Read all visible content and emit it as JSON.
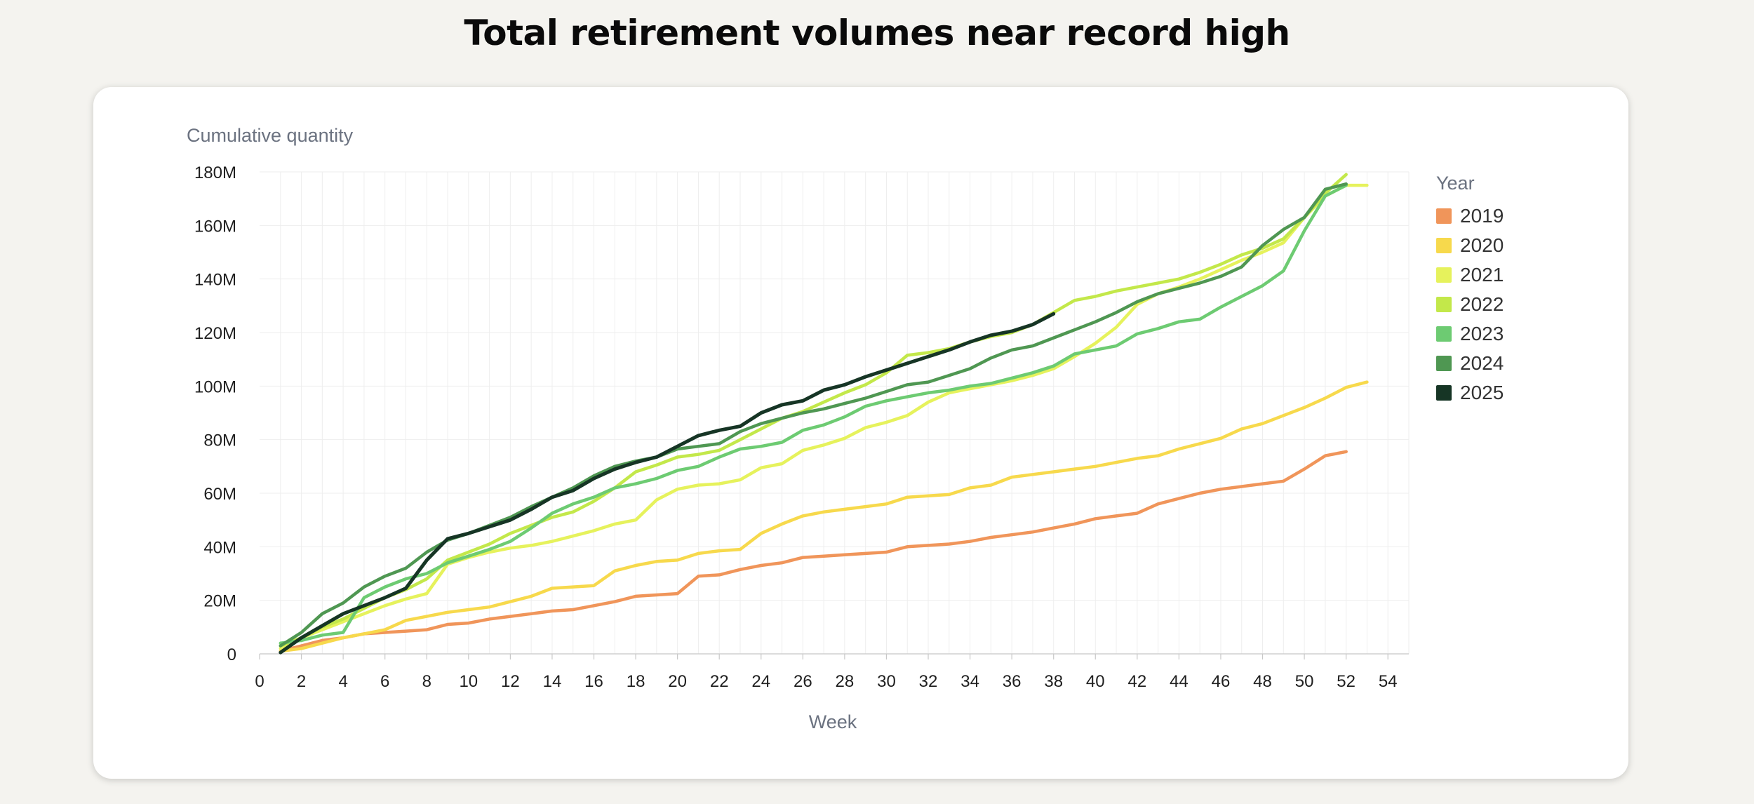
{
  "title": "Total retirement volumes near record high",
  "chart_data": {
    "type": "line",
    "title": "Total retirement volumes near record high",
    "xlabel": "Week",
    "ylabel": "Cumulative quantity",
    "x_ticks": [
      0,
      2,
      4,
      6,
      8,
      10,
      12,
      14,
      16,
      18,
      20,
      22,
      24,
      26,
      28,
      30,
      32,
      34,
      36,
      38,
      40,
      42,
      44,
      46,
      48,
      50,
      52,
      54
    ],
    "y_ticks": [
      0,
      20,
      40,
      60,
      80,
      100,
      120,
      140,
      160,
      180
    ],
    "y_tick_labels": [
      "0",
      "20M",
      "40M",
      "60M",
      "80M",
      "100M",
      "120M",
      "140M",
      "160M",
      "180M"
    ],
    "xlim": [
      0,
      55
    ],
    "ylim": [
      0,
      180
    ],
    "y_unit": "M",
    "grid": true,
    "legend_title": "Year",
    "legend_position": "right",
    "series": [
      {
        "name": "2019",
        "color": "#f0955a",
        "x": [
          1,
          2,
          3,
          4,
          5,
          6,
          7,
          8,
          9,
          10,
          11,
          12,
          13,
          14,
          15,
          16,
          17,
          18,
          19,
          20,
          21,
          22,
          23,
          24,
          25,
          26,
          27,
          28,
          29,
          30,
          31,
          32,
          33,
          34,
          35,
          36,
          37,
          38,
          39,
          40,
          41,
          42,
          43,
          44,
          45,
          46,
          47,
          48,
          49,
          50,
          51,
          52
        ],
        "values": [
          1,
          3,
          5,
          6,
          7.5,
          8,
          8.5,
          9,
          11,
          11.5,
          13,
          14,
          15,
          16,
          16.5,
          18,
          19.5,
          21.5,
          22,
          22.5,
          29,
          29.5,
          31.5,
          33,
          34,
          36,
          36.5,
          37,
          37.5,
          38,
          40,
          40.5,
          41,
          42,
          43.5,
          44.5,
          45.5,
          47,
          48.5,
          50.5,
          51.5,
          52.5,
          56,
          58,
          60,
          61.5,
          62.5,
          63.5,
          64.5,
          69,
          74,
          75.5
        ]
      },
      {
        "name": "2020",
        "color": "#f7d94c",
        "x": [
          1,
          2,
          3,
          4,
          5,
          6,
          7,
          8,
          9,
          10,
          11,
          12,
          13,
          14,
          15,
          16,
          17,
          18,
          19,
          20,
          21,
          22,
          23,
          24,
          25,
          26,
          27,
          28,
          29,
          30,
          31,
          32,
          33,
          34,
          35,
          36,
          37,
          38,
          39,
          40,
          41,
          42,
          43,
          44,
          45,
          46,
          47,
          48,
          49,
          50,
          51,
          52,
          53
        ],
        "values": [
          1,
          2,
          4,
          6,
          7.5,
          9,
          12.5,
          14,
          15.5,
          16.5,
          17.5,
          19.5,
          21.5,
          24.5,
          25,
          25.5,
          31,
          33,
          34.5,
          35,
          37.5,
          38.5,
          39,
          45,
          48.5,
          51.5,
          53,
          54,
          55,
          56,
          58.5,
          59,
          59.5,
          62,
          63,
          66,
          67,
          68,
          69,
          70,
          71.5,
          73,
          74,
          76.5,
          78.5,
          80.5,
          84,
          86,
          89,
          92,
          95.5,
          99.5,
          101.5
        ]
      },
      {
        "name": "2021",
        "color": "#e6f25c",
        "x": [
          1,
          2,
          3,
          4,
          5,
          6,
          7,
          8,
          9,
          10,
          11,
          12,
          13,
          14,
          15,
          16,
          17,
          18,
          19,
          20,
          21,
          22,
          23,
          24,
          25,
          26,
          27,
          28,
          29,
          30,
          31,
          32,
          33,
          34,
          35,
          36,
          37,
          38,
          39,
          40,
          41,
          42,
          43,
          44,
          45,
          46,
          47,
          48,
          49,
          50,
          51,
          52,
          53
        ],
        "values": [
          2,
          6,
          9,
          12,
          15,
          18,
          20.5,
          22.5,
          33.5,
          36,
          38,
          39.5,
          40.5,
          42,
          44,
          46,
          48.5,
          50,
          57.5,
          61.5,
          63,
          63.5,
          65,
          69.5,
          71,
          76,
          78,
          80.5,
          84.5,
          86.5,
          89,
          94,
          97.5,
          99,
          100.5,
          102,
          104,
          106.5,
          111,
          116,
          122,
          130.5,
          134.5,
          137,
          140,
          143.5,
          147,
          150,
          153.5,
          163,
          171,
          175,
          175
        ]
      },
      {
        "name": "2022",
        "color": "#c3e84a",
        "x": [
          1,
          2,
          3,
          4,
          5,
          6,
          7,
          8,
          9,
          10,
          11,
          12,
          13,
          14,
          15,
          16,
          17,
          18,
          19,
          20,
          21,
          22,
          23,
          24,
          25,
          26,
          27,
          28,
          29,
          30,
          31,
          32,
          33,
          34,
          35,
          36,
          37,
          38,
          39,
          40,
          41,
          42,
          43,
          44,
          45,
          46,
          47,
          48,
          49,
          50,
          51,
          52
        ],
        "values": [
          3,
          6,
          10,
          13,
          17,
          21,
          24,
          28,
          35,
          38,
          41,
          45,
          48,
          51,
          53,
          57,
          62,
          68,
          70.5,
          73.5,
          74.5,
          76,
          80,
          84,
          88,
          90.5,
          94,
          97.5,
          100.5,
          105,
          111.5,
          112.5,
          114,
          116.5,
          118.5,
          120,
          123,
          127.5,
          132,
          133.5,
          135.5,
          137,
          138.5,
          140,
          142.5,
          145.5,
          149,
          151.5,
          155,
          163,
          172,
          179
        ]
      },
      {
        "name": "2023",
        "color": "#6dcb72",
        "x": [
          1,
          2,
          3,
          4,
          5,
          6,
          7,
          8,
          9,
          10,
          11,
          12,
          13,
          14,
          15,
          16,
          17,
          18,
          19,
          20,
          21,
          22,
          23,
          24,
          25,
          26,
          27,
          28,
          29,
          30,
          31,
          32,
          33,
          34,
          35,
          36,
          37,
          38,
          39,
          40,
          41,
          42,
          43,
          44,
          45,
          46,
          47,
          48,
          49,
          50,
          51,
          52
        ],
        "values": [
          4,
          5,
          7,
          8,
          21,
          25,
          28,
          30,
          34,
          36.5,
          39,
          42,
          47,
          52.5,
          56,
          58.5,
          62,
          63.5,
          65.5,
          68.5,
          70,
          73.5,
          76.5,
          77.5,
          79,
          83.5,
          85.5,
          88.5,
          92.5,
          94.5,
          96,
          97.5,
          98.5,
          100,
          101,
          103,
          105,
          107.5,
          112,
          113.5,
          115,
          119.5,
          121.5,
          124,
          125,
          129.5,
          133.5,
          137.5,
          143,
          158,
          171,
          175
        ]
      },
      {
        "name": "2024",
        "color": "#4f9752",
        "x": [
          1,
          2,
          3,
          4,
          5,
          6,
          7,
          8,
          9,
          10,
          11,
          12,
          13,
          14,
          15,
          16,
          17,
          18,
          19,
          20,
          21,
          22,
          23,
          24,
          25,
          26,
          27,
          28,
          29,
          30,
          31,
          32,
          33,
          34,
          35,
          36,
          37,
          38,
          39,
          40,
          41,
          42,
          43,
          44,
          45,
          46,
          47,
          48,
          49,
          50,
          51,
          52
        ],
        "values": [
          3,
          8,
          15,
          19,
          25,
          29,
          32,
          38,
          42.5,
          45,
          48,
          51,
          55,
          58.5,
          62,
          66.5,
          70,
          72,
          73.5,
          76.5,
          77.5,
          78.5,
          83,
          86,
          88,
          90,
          91.5,
          93.5,
          95.5,
          98,
          100.5,
          101.5,
          104,
          106.5,
          110.5,
          113.5,
          115,
          118,
          121,
          124,
          127.5,
          131.5,
          134.5,
          136.5,
          138.5,
          141,
          144.5,
          152.5,
          158.5,
          163,
          173.5,
          175.5
        ]
      },
      {
        "name": "2025",
        "color": "#163525",
        "x": [
          1,
          2,
          3,
          4,
          5,
          6,
          7,
          8,
          9,
          10,
          11,
          12,
          13,
          14,
          15,
          16,
          17,
          18,
          19,
          20,
          21,
          22,
          23,
          24,
          25,
          26,
          27,
          28,
          29,
          30,
          31,
          32,
          33,
          34,
          35,
          36,
          37,
          38
        ],
        "values": [
          0.5,
          6,
          10.5,
          15,
          18,
          21,
          24.5,
          35,
          43,
          45,
          47.5,
          50,
          54,
          58.5,
          61,
          65.5,
          69,
          71.5,
          73.5,
          77.5,
          81.5,
          83.5,
          85,
          90,
          93,
          94.5,
          98.5,
          100.5,
          103.5,
          106,
          108.5,
          111,
          113.5,
          116.5,
          119,
          120.5,
          123,
          127
        ]
      }
    ]
  }
}
